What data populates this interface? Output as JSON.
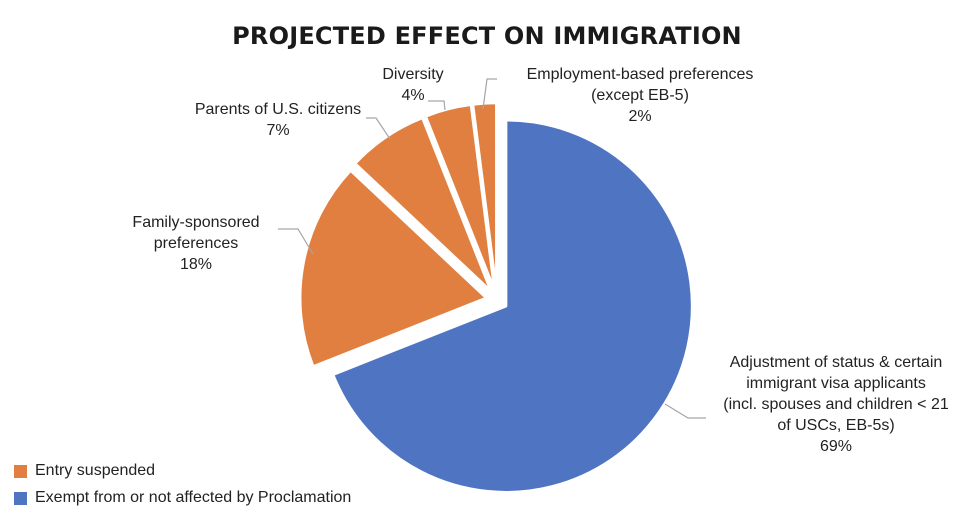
{
  "chart_data": {
    "type": "pie",
    "title": "PROJECTED EFFECT ON IMMIGRATION",
    "slices": [
      {
        "name": "Adjustment of status & certain immigrant visa applicants (incl. spouses and children < 21 of USCs, EB-5s)",
        "value": 69,
        "group": "exempt"
      },
      {
        "name": "Family-sponsored preferences",
        "value": 18,
        "group": "suspended"
      },
      {
        "name": "Parents of U.S. citizens",
        "value": 7,
        "group": "suspended"
      },
      {
        "name": "Diversity",
        "value": 4,
        "group": "suspended"
      },
      {
        "name": "Employment-based preferences (except EB-5)",
        "value": 2,
        "group": "suspended"
      }
    ],
    "legend": [
      {
        "label": "Entry suspended",
        "color": "#e07f40"
      },
      {
        "label": "Exempt from or not affected by Proclamation",
        "color": "#4f74c2"
      }
    ],
    "labels": {
      "adjustment": {
        "lines": [
          "Adjustment of status & certain",
          "immigrant visa applicants",
          "(incl. spouses and children < 21",
          "of USCs, EB-5s)"
        ],
        "pct": "69%"
      },
      "family": {
        "lines": [
          "Family-sponsored",
          "preferences"
        ],
        "pct": "18%"
      },
      "parents": {
        "lines": [
          "Parents of U.S. citizens"
        ],
        "pct": "7%"
      },
      "diversity": {
        "lines": [
          "Diversity"
        ],
        "pct": "4%"
      },
      "employment": {
        "lines": [
          "Employment-based preferences",
          "(except EB-5)"
        ],
        "pct": "2%"
      }
    }
  }
}
